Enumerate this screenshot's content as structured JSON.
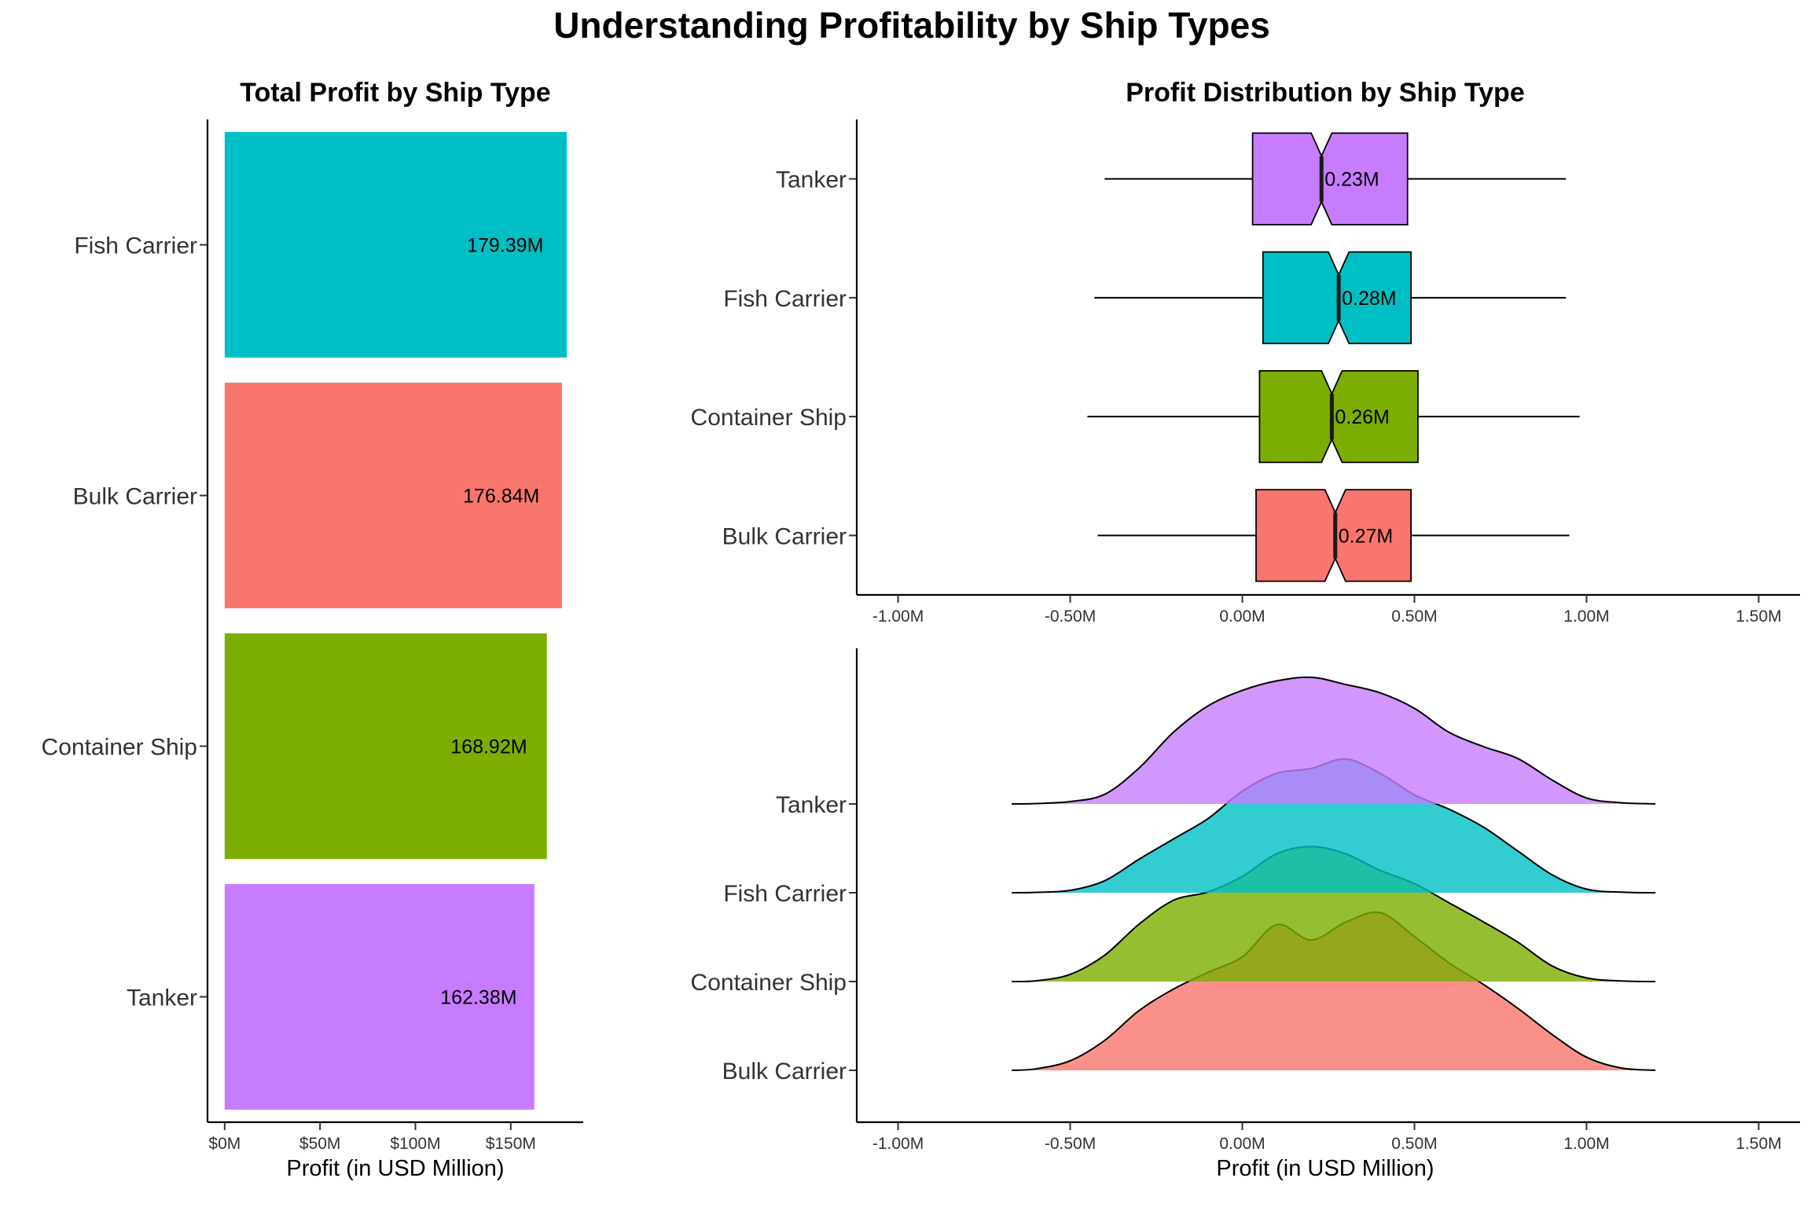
{
  "title": "Understanding Profitability by Ship Types",
  "colors": {
    "Bulk Carrier": "#F8766D",
    "Container Ship": "#7CAE00",
    "Fish Carrier": "#00BFC4",
    "Tanker": "#C77CFF"
  },
  "chart_data": [
    {
      "type": "bar",
      "orientation": "horizontal",
      "title": "Total Profit by Ship Type",
      "xlabel": "Profit (in USD Million)",
      "ylabel": "",
      "categories": [
        "Fish Carrier",
        "Bulk Carrier",
        "Container Ship",
        "Tanker"
      ],
      "values": [
        179.39,
        176.84,
        168.92,
        162.38
      ],
      "value_labels": [
        "179.39M",
        "176.84M",
        "168.92M",
        "162.38M"
      ],
      "xlim": [
        -9,
        188
      ],
      "x_ticks": [
        0,
        50,
        100,
        150
      ],
      "x_tick_labels": [
        "$0M",
        "$50M",
        "$100M",
        "$150M"
      ],
      "grid": false,
      "legend": "none"
    },
    {
      "type": "boxplot",
      "notched": true,
      "title": "Profit Distribution by Ship Type",
      "xlabel": "",
      "ylabel": "",
      "categories": [
        "Tanker",
        "Fish Carrier",
        "Container Ship",
        "Bulk Carrier"
      ],
      "series": [
        {
          "category": "Tanker",
          "min": -0.4,
          "q1": 0.03,
          "median": 0.23,
          "q3": 0.48,
          "max": 0.94,
          "notch_low": 0.2,
          "notch_high": 0.26,
          "label": "0.23M"
        },
        {
          "category": "Fish Carrier",
          "min": -0.43,
          "q1": 0.06,
          "median": 0.28,
          "q3": 0.49,
          "max": 0.94,
          "notch_low": 0.25,
          "notch_high": 0.31,
          "label": "0.28M"
        },
        {
          "category": "Container Ship",
          "min": -0.45,
          "q1": 0.05,
          "median": 0.26,
          "q3": 0.51,
          "max": 0.98,
          "notch_low": 0.23,
          "notch_high": 0.29,
          "label": "0.26M"
        },
        {
          "category": "Bulk Carrier",
          "min": -0.42,
          "q1": 0.04,
          "median": 0.27,
          "q3": 0.49,
          "max": 0.95,
          "notch_low": 0.24,
          "notch_high": 0.3,
          "label": "0.27M"
        }
      ],
      "xlim": [
        -1.12,
        1.62
      ],
      "x_ticks": [
        -1.0,
        -0.5,
        0.0,
        0.5,
        1.0,
        1.5
      ],
      "x_tick_labels": [
        "-1.00M",
        "-0.50M",
        "0.00M",
        "0.50M",
        "1.00M",
        "1.50M"
      ],
      "grid": false,
      "legend": "none"
    },
    {
      "type": "ridgeline",
      "title": "",
      "xlabel": "Profit (in USD Million)",
      "ylabel": "",
      "categories": [
        "Tanker",
        "Fish Carrier",
        "Container Ship",
        "Bulk Carrier"
      ],
      "x": [
        -0.67,
        -0.6,
        -0.5,
        -0.4,
        -0.3,
        -0.2,
        -0.1,
        0.0,
        0.1,
        0.2,
        0.3,
        0.4,
        0.5,
        0.6,
        0.7,
        0.8,
        0.9,
        1.0,
        1.1,
        1.2
      ],
      "series": [
        {
          "name": "Tanker",
          "values": [
            0.0,
            0.003,
            0.02,
            0.08,
            0.3,
            0.6,
            0.82,
            0.95,
            1.03,
            1.06,
            1.0,
            0.93,
            0.8,
            0.6,
            0.48,
            0.38,
            0.2,
            0.05,
            0.01,
            0.0
          ]
        },
        {
          "name": "Fish Carrier",
          "values": [
            0.0,
            0.003,
            0.02,
            0.1,
            0.28,
            0.45,
            0.62,
            0.85,
            1.0,
            1.04,
            1.12,
            1.0,
            0.82,
            0.7,
            0.55,
            0.35,
            0.15,
            0.03,
            0.005,
            0.0
          ]
        },
        {
          "name": "Container Ship",
          "values": [
            0.0,
            0.006,
            0.06,
            0.22,
            0.48,
            0.68,
            0.75,
            0.88,
            1.07,
            1.13,
            1.07,
            0.93,
            0.82,
            0.66,
            0.5,
            0.33,
            0.13,
            0.03,
            0.005,
            0.0
          ]
        },
        {
          "name": "Bulk Carrier",
          "values": [
            0.0,
            0.012,
            0.08,
            0.25,
            0.5,
            0.68,
            0.82,
            0.95,
            1.22,
            1.09,
            1.24,
            1.32,
            1.12,
            0.9,
            0.72,
            0.52,
            0.3,
            0.11,
            0.02,
            0.0
          ]
        }
      ],
      "xlim": [
        -1.12,
        1.62
      ],
      "x_ticks": [
        -1.0,
        -0.5,
        0.0,
        0.5,
        1.0,
        1.5
      ],
      "x_tick_labels": [
        "-1.00M",
        "-0.50M",
        "0.00M",
        "0.50M",
        "1.00M",
        "1.50M"
      ],
      "grid": false,
      "legend": "none"
    }
  ]
}
